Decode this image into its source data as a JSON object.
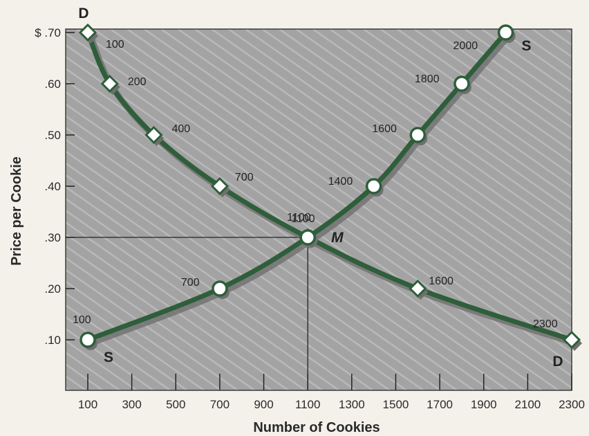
{
  "chart_data": {
    "type": "line",
    "xlabel": "Number of Cookies",
    "ylabel": "Price per Cookie",
    "xlim": [
      100,
      2300
    ],
    "ylim": [
      0.05,
      0.7
    ],
    "x_ticks": [
      100,
      300,
      500,
      700,
      900,
      1100,
      1300,
      1500,
      1700,
      1900,
      2100,
      2300
    ],
    "x_tick_labels": [
      "100",
      "300",
      "500",
      "700",
      "900",
      "1100",
      "1300",
      "1500",
      "1700",
      "1900",
      "2100",
      "2300"
    ],
    "y_ticks": [
      0.1,
      0.2,
      0.3,
      0.4,
      0.5,
      0.6,
      0.7
    ],
    "y_tick_labels": [
      ".10",
      ".20",
      ".30",
      ".40",
      ".50",
      ".60",
      "$ .70"
    ],
    "grid": false,
    "background": "hatched gray",
    "colors": {
      "curve": "#2e5e3a",
      "plot_bg": "#a3a3a3",
      "marker_fill": "#ffffff"
    },
    "series": [
      {
        "label_start": "D",
        "label_end": "D",
        "marker": "diamond",
        "points": [
          {
            "x": 100,
            "y": 0.7,
            "label": "100"
          },
          {
            "x": 200,
            "y": 0.6,
            "label": "200"
          },
          {
            "x": 400,
            "y": 0.5,
            "label": "400"
          },
          {
            "x": 700,
            "y": 0.4,
            "label": "700"
          },
          {
            "x": 1100,
            "y": 0.3,
            "label": "1100"
          },
          {
            "x": 1600,
            "y": 0.2,
            "label": "1600"
          },
          {
            "x": 2300,
            "y": 0.1,
            "label": "2300"
          }
        ]
      },
      {
        "label_start": "S",
        "label_end": "S",
        "marker": "circle",
        "points": [
          {
            "x": 100,
            "y": 0.1,
            "label": "100"
          },
          {
            "x": 700,
            "y": 0.2,
            "label": "700"
          },
          {
            "x": 1100,
            "y": 0.3,
            "label": ""
          },
          {
            "x": 1400,
            "y": 0.4,
            "label": "1400"
          },
          {
            "x": 1600,
            "y": 0.5,
            "label": "1600"
          },
          {
            "x": 1800,
            "y": 0.6,
            "label": "1800"
          },
          {
            "x": 2000,
            "y": 0.7,
            "label": "2000"
          }
        ]
      }
    ],
    "annotations": [
      {
        "text": "M",
        "x": 1100,
        "y": 0.3
      }
    ]
  }
}
